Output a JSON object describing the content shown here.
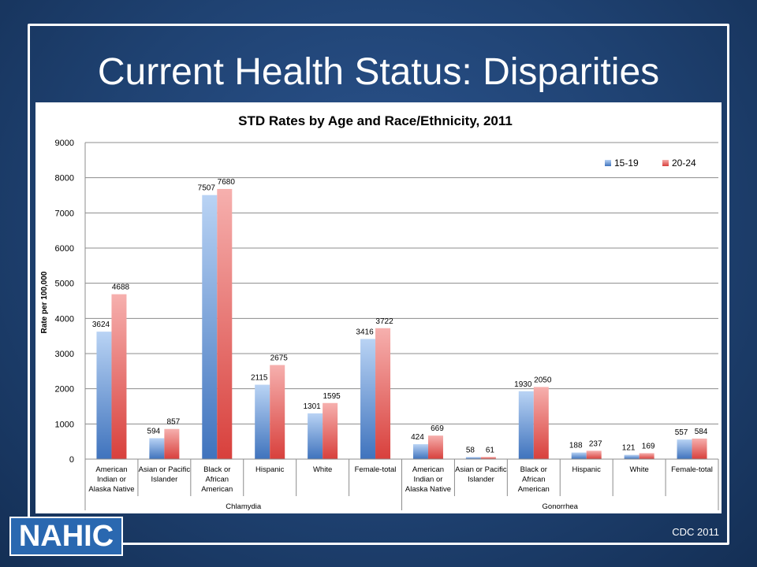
{
  "slide": {
    "title": "Current Health Status: Disparities",
    "logo_text": "NAHIC",
    "source": "CDC 2011"
  },
  "colors": {
    "series_1": "#4f81bd",
    "series_2": "#e3534f",
    "background": "#1f4272"
  },
  "chart_data": {
    "type": "bar",
    "title": "STD Rates by Age and Race/Ethnicity, 2011",
    "ylabel": "Rate per 100,000",
    "xlabel": "",
    "ylim": [
      0,
      9000
    ],
    "yticks": [
      0,
      1000,
      2000,
      3000,
      4000,
      5000,
      6000,
      7000,
      8000,
      9000
    ],
    "grid": true,
    "legend_position": "top-right",
    "categories": [
      "American Indian or Alaska Native",
      "Asian or Pacific Islander",
      "Black or African American",
      "Hispanic",
      "White",
      "Female-total",
      "American Indian or Alaska Native",
      "Asian or Pacific Islander",
      "Black or African American",
      "Hispanic",
      "White",
      "Female-total"
    ],
    "category_lines": [
      [
        "American",
        "Indian or",
        "Alaska Native"
      ],
      [
        "Asian or Pacific",
        "Islander"
      ],
      [
        "Black or",
        "African",
        "American"
      ],
      [
        "Hispanic"
      ],
      [
        "White"
      ],
      [
        "Female-total"
      ],
      [
        "American",
        "Indian or",
        "Alaska Native"
      ],
      [
        "Asian or Pacific",
        "Islander"
      ],
      [
        "Black or",
        "African",
        "American"
      ],
      [
        "Hispanic"
      ],
      [
        "White"
      ],
      [
        "Female-total"
      ]
    ],
    "groups": [
      {
        "name": "Chlamydia",
        "count": 6
      },
      {
        "name": "Gonorrhea",
        "count": 6
      }
    ],
    "series": [
      {
        "name": "15-19",
        "values": [
          3624,
          594,
          7507,
          2115,
          1301,
          3416,
          424,
          58,
          1930,
          188,
          121,
          557
        ]
      },
      {
        "name": "20-24",
        "values": [
          4688,
          857,
          7680,
          2675,
          1595,
          3722,
          669,
          61,
          2050,
          237,
          169,
          584
        ]
      }
    ]
  }
}
